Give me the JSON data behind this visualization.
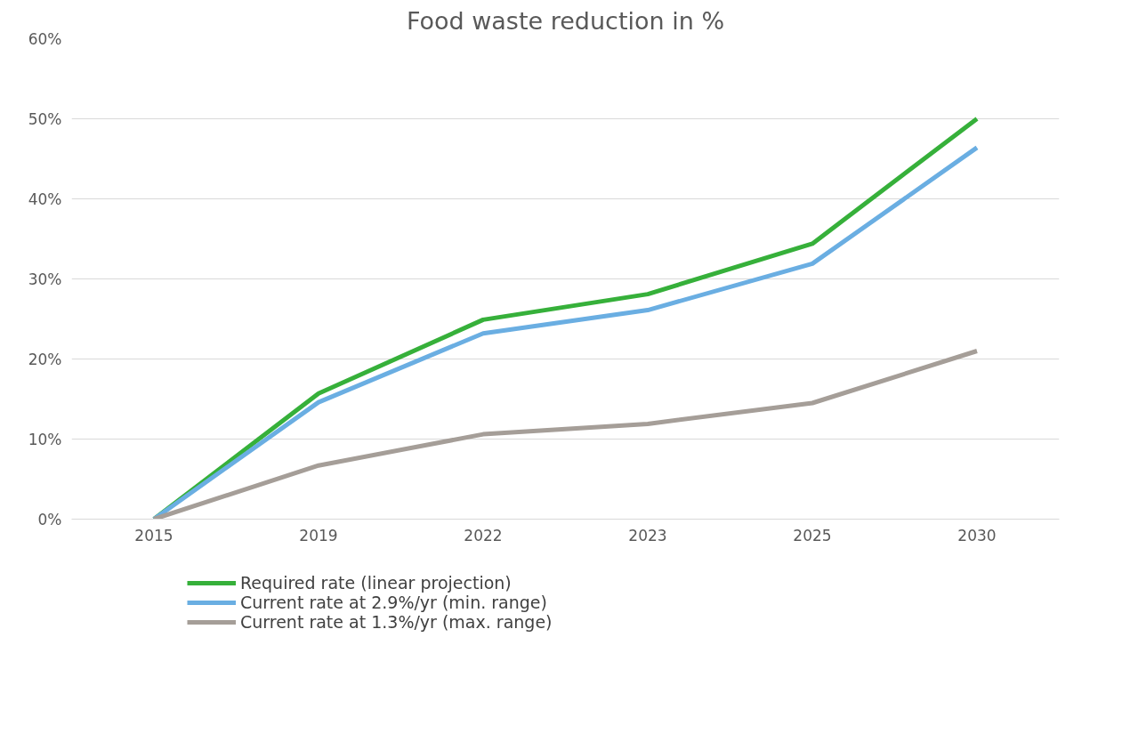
{
  "chart_data": {
    "type": "line",
    "title": "Food waste reduction in %",
    "categories": [
      "2015",
      "2019",
      "2022",
      "2023",
      "2025",
      "2030"
    ],
    "series": [
      {
        "name": "Required rate (linear projection)",
        "color": "#36b03a",
        "values": [
          0,
          15.7,
          24.9,
          28.1,
          34.4,
          50
        ]
      },
      {
        "name": "Current rate at 2.9%/yr (min. range)",
        "color": "#6aaee2",
        "values": [
          0,
          14.6,
          23.2,
          26.1,
          31.9,
          46.4
        ]
      },
      {
        "name": "Current rate at 1.3%/yr (max. range)",
        "color": "#a59e98",
        "values": [
          0,
          6.7,
          10.6,
          11.9,
          14.5,
          21.0
        ]
      }
    ],
    "ylim": [
      0,
      60
    ],
    "yticks": [
      {
        "value": 0,
        "label": "0%"
      },
      {
        "value": 10,
        "label": "10%"
      },
      {
        "value": 20,
        "label": "20%"
      },
      {
        "value": 30,
        "label": "30%"
      },
      {
        "value": 40,
        "label": "40%"
      },
      {
        "value": 50,
        "label": "50%"
      },
      {
        "value": 60,
        "label": "60%"
      }
    ],
    "grid": "y",
    "legend": "bottom",
    "marker": "none",
    "line_style": "solid"
  }
}
